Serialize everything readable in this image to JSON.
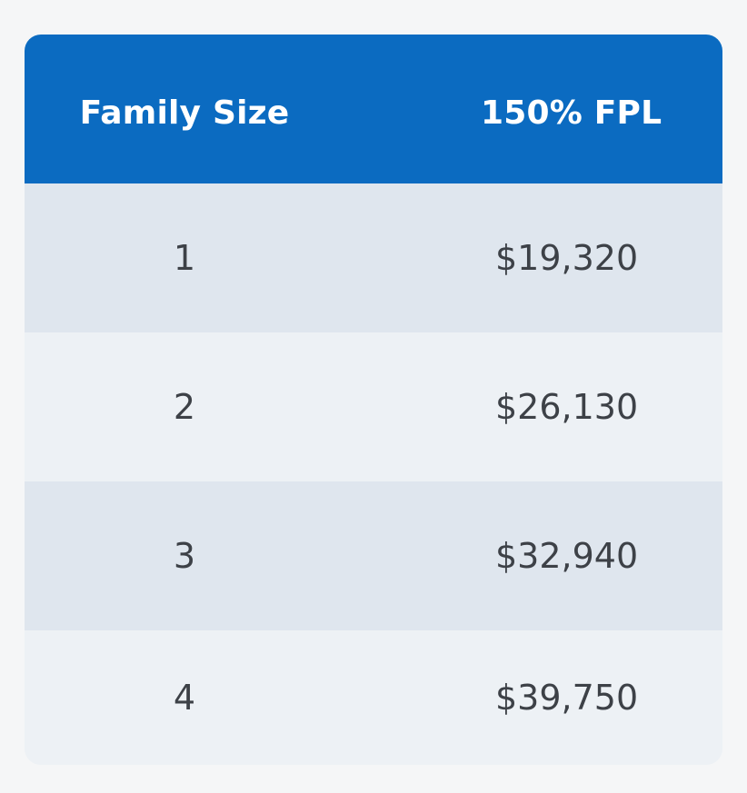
{
  "table": {
    "headers": {
      "family_size": "Family Size",
      "fpl": "150% FPL"
    },
    "rows": [
      {
        "family_size": "1",
        "fpl": "$19,320"
      },
      {
        "family_size": "2",
        "fpl": "$26,130"
      },
      {
        "family_size": "3",
        "fpl": "$32,940"
      },
      {
        "family_size": "4",
        "fpl": "$39,750"
      }
    ],
    "colors": {
      "header_background": "#0b6bc1",
      "header_text": "#ffffff",
      "row_odd": "#dfe6ee",
      "row_even": "#edf1f5",
      "body_text": "#3d4147"
    }
  }
}
